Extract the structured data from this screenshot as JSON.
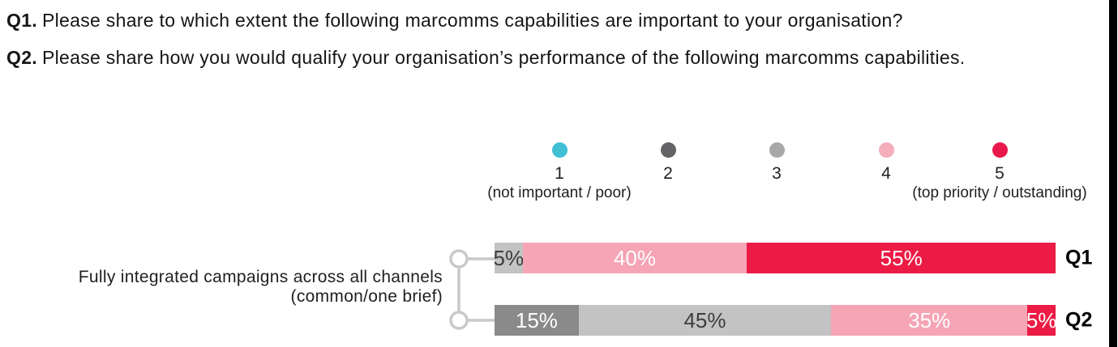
{
  "header": {
    "q1_prefix": "Q1.",
    "q1_text": "Please share to which extent the following marcomms capabilities are important to your organisation?",
    "q2_prefix": "Q2.",
    "q2_text": "Please share how you would qualify your organisation’s performance of the following marcomms capabilities."
  },
  "legend": {
    "items": [
      {
        "value": "1",
        "color": "#41BFD5",
        "sublabel": "(not important / poor)"
      },
      {
        "value": "2",
        "color": "#646467",
        "sublabel": ""
      },
      {
        "value": "3",
        "color": "#A8A8A8",
        "sublabel": ""
      },
      {
        "value": "4",
        "color": "#F5AEBC",
        "sublabel": ""
      },
      {
        "value": "5",
        "color": "#E9184A",
        "sublabel": "(top priority / outstanding)"
      }
    ]
  },
  "category": {
    "line1": "Fully integrated campaigns across all channels",
    "line2": "(common/one brief)"
  },
  "chart_data": {
    "type": "bar",
    "orientation": "horizontal",
    "stacked": true,
    "xlim": [
      0,
      100
    ],
    "unit": "%",
    "category": "Fully integrated campaigns across all channels (common/one brief)",
    "scale_min_label": "1 (not important / poor)",
    "scale_max_label": "5 (top priority / outstanding)",
    "series": [
      {
        "name": "Q1",
        "segments": [
          {
            "score": 3,
            "value": 5,
            "label": "5%"
          },
          {
            "score": 4,
            "value": 40,
            "label": "40%"
          },
          {
            "score": 5,
            "value": 55,
            "label": "55%"
          }
        ]
      },
      {
        "name": "Q2",
        "segments": [
          {
            "score": 2,
            "value": 15,
            "label": "15%"
          },
          {
            "score": 3,
            "value": 45,
            "label": "45%"
          },
          {
            "score": 4,
            "value": 35,
            "label": "35%"
          },
          {
            "score": 5,
            "value": 5,
            "label": "5%"
          }
        ]
      }
    ]
  },
  "colors": {
    "score_bars": {
      "2": "#8A8A8A",
      "3": "#C3C3C3",
      "4": "#F5A5B4",
      "5": "#EB1B45"
    },
    "dark_segment_text": "#3D3D3D",
    "light_segment_text": "#FFFFFF",
    "connector": "#C9C9C9"
  }
}
